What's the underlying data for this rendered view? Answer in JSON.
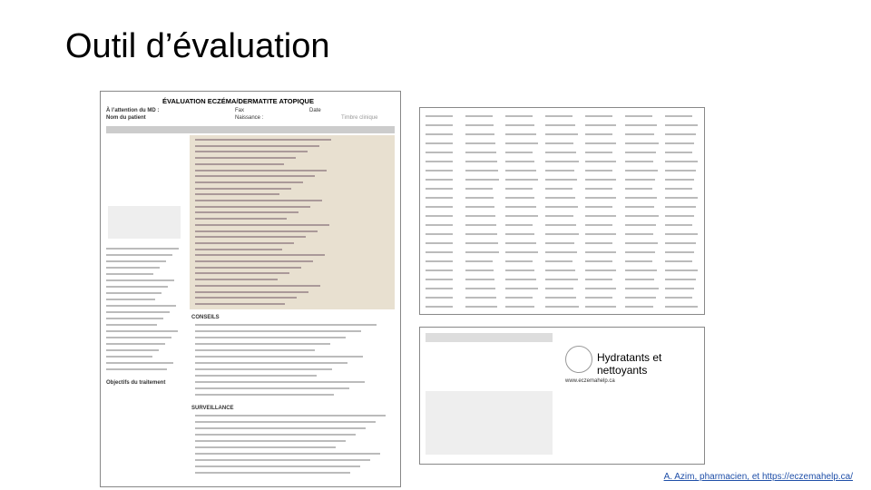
{
  "slide": {
    "title": "Outil d’évaluation",
    "credit": "A. Azim, pharmacien, et https://eczemahelp.ca/"
  },
  "left_document": {
    "heading": "ÉVALUATION ECZÉMA/DERMATITE ATOPIQUE",
    "attention": "À l’attention du MD :",
    "fax": "Fax",
    "date": "Date",
    "patient": "Nom du patient",
    "birth": "Naissance :",
    "stamp": "Timbre clinique",
    "advice": "CONSEILS",
    "monitoring": "SURVEILLANCE",
    "goals": "Objectifs du traitement"
  },
  "right_document": {
    "heading": "Hydratants et nettoyants",
    "site": "www.eczemahelp.ca"
  }
}
